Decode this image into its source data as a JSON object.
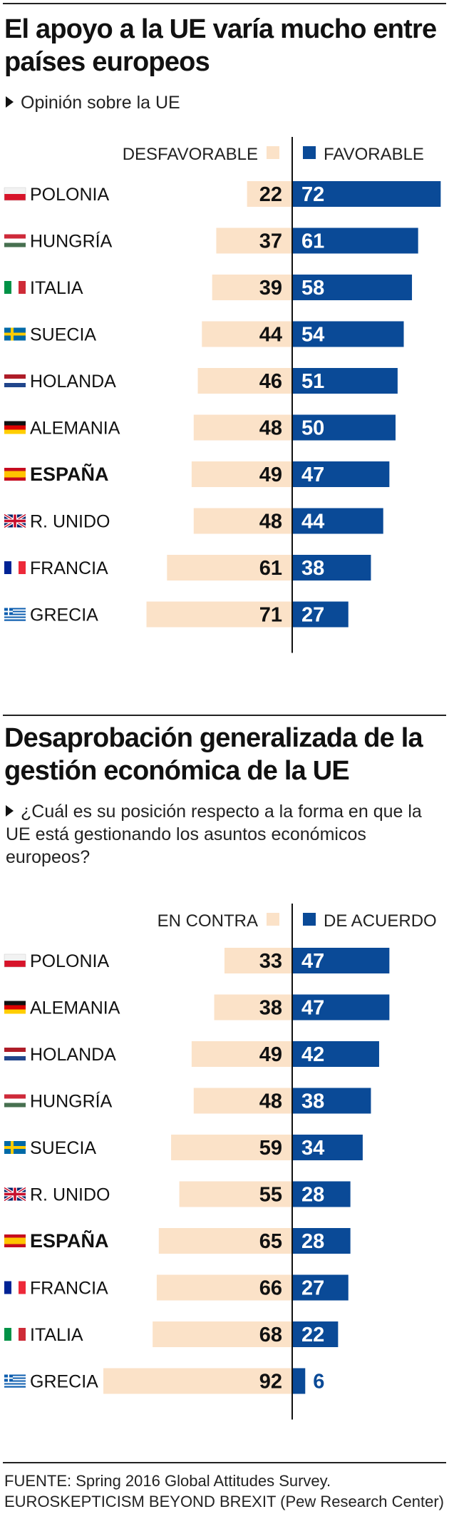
{
  "colors": {
    "favorable": "#0a4a97",
    "unfavorable": "#fbe2c8",
    "axis": "#111111",
    "bold_country": "#111111"
  },
  "chart_data": [
    {
      "type": "bar",
      "title": "El apoyo a la UE varía mucho entre países europeos",
      "subtitle": "Opinión sobre la UE",
      "legend": {
        "left": "DESFAVORABLE",
        "right": "FAVORABLE",
        "placement": "top"
      },
      "categories": [
        "POLONIA",
        "HUNGRÍA",
        "ITALIA",
        "SUECIA",
        "HOLANDA",
        "ALEMANIA",
        "ESPAÑA",
        "R. UNIDO",
        "FRANCIA",
        "GRECIA"
      ],
      "flags": [
        "pl",
        "hu",
        "it",
        "se",
        "nl",
        "de",
        "es",
        "gb",
        "fr",
        "gr"
      ],
      "highlight": "ESPAÑA",
      "series": [
        {
          "name": "DESFAVORABLE",
          "values": [
            22,
            37,
            39,
            44,
            46,
            48,
            49,
            48,
            61,
            71
          ]
        },
        {
          "name": "FAVORABLE",
          "values": [
            72,
            61,
            58,
            54,
            51,
            50,
            47,
            44,
            38,
            27
          ]
        }
      ]
    },
    {
      "type": "bar",
      "title": "Desaprobación generalizada de la gestión económica de la UE",
      "subtitle": "¿Cuál es su posición respecto a la forma en que la UE está gestionando los asuntos económicos europeos?",
      "legend": {
        "left": "EN CONTRA",
        "right": "DE ACUERDO",
        "placement": "top"
      },
      "categories": [
        "POLONIA",
        "ALEMANIA",
        "HOLANDA",
        "HUNGRÍA",
        "SUECIA",
        "R. UNIDO",
        "ESPAÑA",
        "FRANCIA",
        "ITALIA",
        "GRECIA"
      ],
      "flags": [
        "pl",
        "de",
        "nl",
        "hu",
        "se",
        "gb",
        "es",
        "fr",
        "it",
        "gr"
      ],
      "highlight": "ESPAÑA",
      "series": [
        {
          "name": "EN CONTRA",
          "values": [
            33,
            38,
            49,
            48,
            59,
            55,
            65,
            66,
            68,
            92
          ]
        },
        {
          "name": "DE ACUERDO",
          "values": [
            47,
            47,
            42,
            38,
            34,
            28,
            28,
            27,
            22,
            6
          ]
        }
      ]
    }
  ],
  "source": {
    "line1": "FUENTE: Spring 2016 Global Attitudes Survey.",
    "line2": "EUROSKEPTICISM BEYOND BREXIT (Pew Research Center)"
  }
}
